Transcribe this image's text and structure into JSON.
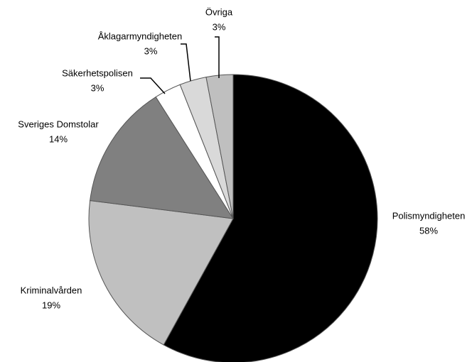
{
  "chart_data": {
    "type": "pie",
    "categories": [
      "Polismyndigheten",
      "Kriminalvården",
      "Sveriges Domstolar",
      "Säkerhetspolisen",
      "Åklagarmyndigheten",
      "Övriga"
    ],
    "values": [
      58,
      19,
      14,
      3,
      3,
      3
    ],
    "value_labels": [
      "58%",
      "19%",
      "14%",
      "3%",
      "3%",
      "3%"
    ],
    "colors": [
      "#000000",
      "#c0c0c0",
      "#808080",
      "#ffffff",
      "#d9d9d9",
      "#bfbfbf"
    ]
  }
}
